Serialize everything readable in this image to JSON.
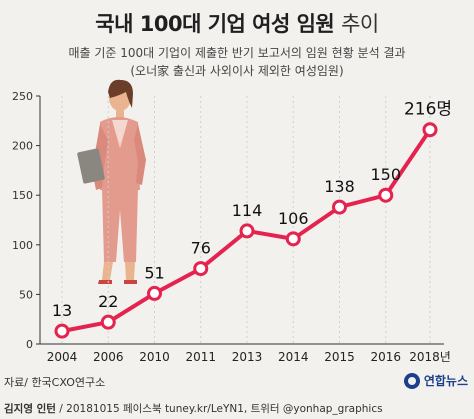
{
  "title_main": "국내 100대 기업 여성 임원",
  "title_accent": "추이",
  "subtitle_line1": "매출 기준 100대 기업이 제출한 반기 보고서의 임원 현황 분석 결과",
  "subtitle_line2": "(오너家 출신과 사외이사 제외한 여성임원)",
  "source": "자료/ 한국CXO연구소",
  "credit_name": "김지영 인턴",
  "credit_rest": " / 20181015  페이스북 tuney.kr/LeYN1, 트위터 @yonhap_graphics",
  "logo_text": "연합뉴스",
  "colors": {
    "line": "#e4244f",
    "marker_fill": "#ffffff",
    "axis": "#333333",
    "grid": "#cfcfcf"
  },
  "chart_data": {
    "type": "line",
    "categories": [
      "2004",
      "2006",
      "2010",
      "2011",
      "2013",
      "2014",
      "2015",
      "2016",
      "2018년"
    ],
    "values": [
      13,
      22,
      51,
      76,
      114,
      106,
      138,
      150,
      216
    ],
    "value_labels": [
      "13",
      "22",
      "51",
      "76",
      "114",
      "106",
      "138",
      "150",
      "216명"
    ],
    "yticks": [
      0,
      50,
      100,
      150,
      200,
      250
    ],
    "ylim": [
      0,
      250
    ],
    "grid": "vertical"
  }
}
